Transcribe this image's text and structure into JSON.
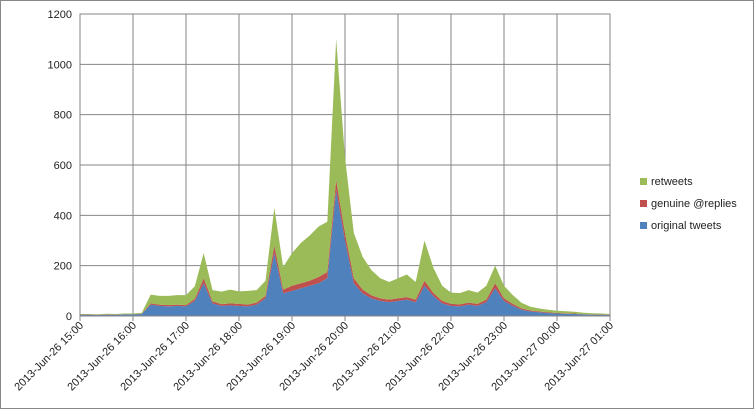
{
  "chart_data": {
    "type": "area",
    "stacked": true,
    "x": [
      "2013-Jun-26 15:00",
      "2013-Jun-26 15:10",
      "2013-Jun-26 15:20",
      "2013-Jun-26 15:30",
      "2013-Jun-26 15:40",
      "2013-Jun-26 15:50",
      "2013-Jun-26 16:00",
      "2013-Jun-26 16:10",
      "2013-Jun-26 16:20",
      "2013-Jun-26 16:30",
      "2013-Jun-26 16:40",
      "2013-Jun-26 16:50",
      "2013-Jun-26 17:00",
      "2013-Jun-26 17:10",
      "2013-Jun-26 17:20",
      "2013-Jun-26 17:30",
      "2013-Jun-26 17:40",
      "2013-Jun-26 17:50",
      "2013-Jun-26 18:00",
      "2013-Jun-26 18:10",
      "2013-Jun-26 18:20",
      "2013-Jun-26 18:30",
      "2013-Jun-26 18:40",
      "2013-Jun-26 18:50",
      "2013-Jun-26 19:00",
      "2013-Jun-26 19:10",
      "2013-Jun-26 19:20",
      "2013-Jun-26 19:30",
      "2013-Jun-26 19:40",
      "2013-Jun-26 19:50",
      "2013-Jun-26 20:00",
      "2013-Jun-26 20:10",
      "2013-Jun-26 20:20",
      "2013-Jun-26 20:30",
      "2013-Jun-26 20:40",
      "2013-Jun-26 20:50",
      "2013-Jun-26 21:00",
      "2013-Jun-26 21:10",
      "2013-Jun-26 21:20",
      "2013-Jun-26 21:30",
      "2013-Jun-26 21:40",
      "2013-Jun-26 21:50",
      "2013-Jun-26 22:00",
      "2013-Jun-26 22:10",
      "2013-Jun-26 22:20",
      "2013-Jun-26 22:30",
      "2013-Jun-26 22:40",
      "2013-Jun-26 22:50",
      "2013-Jun-26 23:00",
      "2013-Jun-26 23:10",
      "2013-Jun-26 23:20",
      "2013-Jun-26 23:30",
      "2013-Jun-26 23:40",
      "2013-Jun-26 23:50",
      "2013-Jun-27 00:00",
      "2013-Jun-27 00:10",
      "2013-Jun-27 00:20",
      "2013-Jun-27 00:30",
      "2013-Jun-27 00:40",
      "2013-Jun-27 00:50",
      "2013-Jun-27 01:00"
    ],
    "series": [
      {
        "name": "original tweets",
        "color": "#4f81bd",
        "values": [
          5,
          5,
          4,
          5,
          5,
          6,
          6,
          8,
          45,
          40,
          38,
          40,
          38,
          60,
          130,
          50,
          40,
          42,
          40,
          38,
          45,
          70,
          250,
          90,
          100,
          110,
          120,
          130,
          150,
          500,
          300,
          130,
          90,
          70,
          60,
          55,
          60,
          65,
          55,
          120,
          80,
          50,
          40,
          38,
          45,
          40,
          55,
          110,
          60,
          40,
          25,
          18,
          15,
          12,
          10,
          9,
          8,
          6,
          5,
          5,
          4
        ]
      },
      {
        "name": "genuine @replies",
        "color": "#c0504d",
        "values": [
          1,
          1,
          1,
          1,
          1,
          1,
          1,
          1,
          5,
          5,
          5,
          5,
          5,
          8,
          20,
          8,
          7,
          8,
          8,
          7,
          8,
          10,
          30,
          15,
          20,
          20,
          20,
          25,
          25,
          40,
          30,
          20,
          15,
          12,
          10,
          10,
          10,
          10,
          10,
          20,
          12,
          10,
          8,
          8,
          8,
          8,
          10,
          20,
          10,
          8,
          5,
          4,
          3,
          3,
          2,
          2,
          2,
          1,
          1,
          1,
          1
        ]
      },
      {
        "name": "retweets",
        "color": "#9bbb59",
        "values": [
          2,
          2,
          2,
          3,
          2,
          3,
          3,
          4,
          35,
          35,
          37,
          38,
          40,
          50,
          100,
          45,
          50,
          55,
          50,
          55,
          50,
          60,
          150,
          90,
          130,
          160,
          180,
          200,
          200,
          560,
          300,
          180,
          130,
          100,
          80,
          70,
          80,
          90,
          70,
          160,
          100,
          60,
          45,
          45,
          50,
          45,
          55,
          70,
          50,
          35,
          22,
          15,
          12,
          10,
          9,
          8,
          7,
          6,
          5,
          4,
          3
        ]
      }
    ],
    "xlim": [
      "2013-Jun-26 15:00",
      "2013-Jun-27 01:00"
    ],
    "xticks": [
      "2013-Jun-26 15:00",
      "2013-Jun-26 16:00",
      "2013-Jun-26 17:00",
      "2013-Jun-26 18:00",
      "2013-Jun-26 19:00",
      "2013-Jun-26 20:00",
      "2013-Jun-26 21:00",
      "2013-Jun-26 22:00",
      "2013-Jun-26 23:00",
      "2013-Jun-27 00:00",
      "2013-Jun-27 01:00"
    ],
    "ylim": [
      0,
      1200
    ],
    "yticks": [
      0,
      200,
      400,
      600,
      800,
      1000,
      1200
    ],
    "grid": true,
    "legend": "right"
  }
}
